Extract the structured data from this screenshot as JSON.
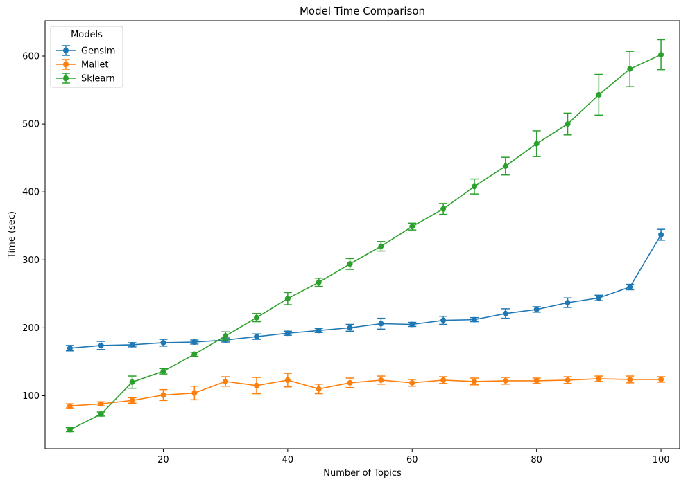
{
  "chart_data": {
    "type": "line",
    "title": "Model Time Comparison",
    "xlabel": "Number of Topics",
    "ylabel": "Time (sec)",
    "xlim": [
      1,
      103
    ],
    "ylim": [
      22,
      652
    ],
    "x_ticks": [
      20,
      40,
      60,
      80,
      100
    ],
    "y_ticks": [
      100,
      200,
      300,
      400,
      500,
      600
    ],
    "grid": false,
    "legend": {
      "title": "Models",
      "placement": "top-left"
    },
    "x": [
      5,
      10,
      15,
      20,
      25,
      30,
      35,
      40,
      45,
      50,
      55,
      60,
      65,
      70,
      75,
      80,
      85,
      90,
      95,
      100
    ],
    "series": [
      {
        "name": "Gensim",
        "color": "#1f77b4",
        "values": [
          170,
          174,
          175,
          178,
          179,
          182,
          187,
          192,
          196,
          200,
          206,
          205,
          211,
          212,
          221,
          227,
          237,
          244,
          260,
          337
        ],
        "errors": [
          4,
          6,
          3,
          5,
          3,
          3,
          4,
          3,
          3,
          5,
          8,
          3,
          6,
          3,
          7,
          4,
          7,
          4,
          4,
          8
        ]
      },
      {
        "name": "Mallet",
        "color": "#ff7f0e",
        "values": [
          85,
          88,
          93,
          101,
          104,
          121,
          115,
          123,
          110,
          119,
          123,
          119,
          123,
          121,
          122,
          122,
          123,
          125,
          124,
          124
        ],
        "errors": [
          3,
          3,
          4,
          8,
          10,
          7,
          12,
          10,
          7,
          7,
          6,
          5,
          5,
          5,
          5,
          4,
          5,
          4,
          5,
          4
        ]
      },
      {
        "name": "Sklearn",
        "color": "#2ca02c",
        "values": [
          50,
          73,
          120,
          136,
          161,
          188,
          215,
          243,
          267,
          294,
          320,
          349,
          375,
          408,
          438,
          471,
          500,
          543,
          581,
          602
        ],
        "errors": [
          3,
          3,
          9,
          4,
          3,
          6,
          6,
          9,
          6,
          8,
          7,
          5,
          8,
          11,
          13,
          19,
          16,
          30,
          26,
          22
        ]
      }
    ]
  }
}
